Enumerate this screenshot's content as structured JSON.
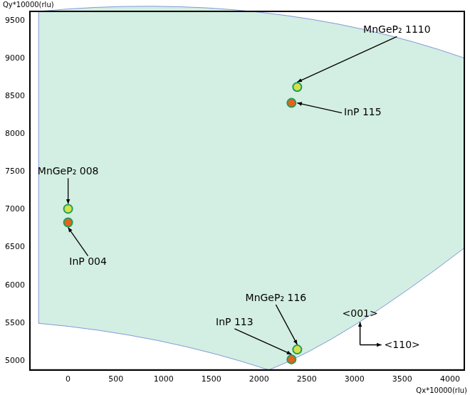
{
  "chart_data": {
    "type": "scatter",
    "x_label": "Qx*10000(rlu)",
    "y_label": "Qy*10000(rlu)",
    "x": [
      0,
      0,
      2340,
      2400,
      2340,
      2400
    ],
    "values": [
      6830,
      7010,
      8410,
      8620,
      5020,
      5150
    ],
    "colors": [
      "#e8601c",
      "#d6e04a",
      "#e8601c",
      "#d6e04a",
      "#e8601c",
      "#d6e04a"
    ],
    "marker": "circle",
    "annotations": [
      {
        "text": "InP 004",
        "x": 0,
        "y": 6830
      },
      {
        "text": "MnGeP₂ 008",
        "x": 0,
        "y": 7010
      },
      {
        "text": "InP 115",
        "x": 2340,
        "y": 8410
      },
      {
        "text": "MnGeP₂ 1110",
        "x": 2400,
        "y": 8620
      },
      {
        "text": "InP 113",
        "x": 2340,
        "y": 5020
      },
      {
        "text": "MnGeP₂ 116",
        "x": 2400,
        "y": 5150
      }
    ],
    "axis_directions": {
      "up": "<001>",
      "right": "<110>"
    },
    "xlim": [
      -400,
      4150
    ],
    "xticks": [
      0,
      500,
      1000,
      1500,
      2000,
      2500,
      3000,
      3500,
      4000
    ],
    "ylim": [
      4880,
      9620
    ],
    "yticks": [
      5000,
      5500,
      6000,
      6500,
      7000,
      7500,
      8000,
      8500,
      9000,
      9500
    ],
    "grid": false
  }
}
